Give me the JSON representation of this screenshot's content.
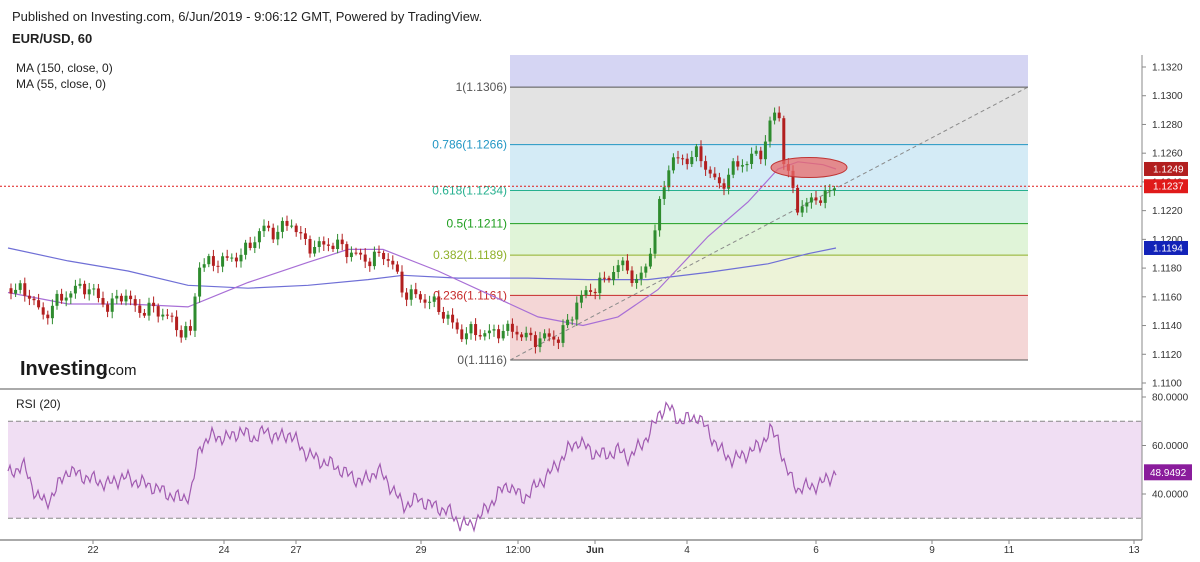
{
  "header": {
    "published": "Published on Investing.com, 6/Jun/2019 - 9:06:12 GMT, Powered by TradingView.",
    "symbol": "EUR/USD, 60"
  },
  "indicators": {
    "ma150": "MA (150, close, 0)",
    "ma55": "MA (55, close, 0)",
    "rsi": "RSI (20)"
  },
  "logo": {
    "name": "Investing",
    "domain": ".com"
  },
  "colors": {
    "bull": "#2e8b2e",
    "bear": "#b21f1f",
    "ma150": "#6f6fd6",
    "ma55": "#a86fd6",
    "rsi": "#a05ab0",
    "price_line": "#e01a1a",
    "ma55_badge": "#1222b8",
    "rsi_badge": "#8a1c9c",
    "fib_100": "#d5d5f3",
    "fib_786": "#e3e3e3",
    "fib_618": "#d4ebf6",
    "fib_50": "#d7f1e6",
    "fib_382": "#e0f4d8",
    "fib_236": "#edf3d8",
    "fib_0": "#f4d6d6"
  },
  "chart_data": [
    {
      "type": "candlestick",
      "title": "EUR/USD, 60",
      "x_labels": [
        "22",
        "24",
        "27",
        "29",
        "12:00",
        "Jun",
        "4",
        "6",
        "9",
        "11",
        "13"
      ],
      "y_ticks": [
        "1.1320",
        "1.1300",
        "1.1280",
        "1.1260",
        "1.1240",
        "1.1220",
        "1.1200",
        "1.1180",
        "1.1160",
        "1.1140",
        "1.1120",
        "1.1100"
      ],
      "ylim": [
        1.11,
        1.132
      ],
      "last_price": "1.1237",
      "price_badges": [
        "1.1249",
        "1.1237",
        "1.1194"
      ],
      "fibonacci": [
        {
          "label": "1(1.1306)",
          "level": 1.1306,
          "color": "#555555"
        },
        {
          "label": "0.786(1.1266)",
          "level": 1.1266,
          "color": "#2196c4"
        },
        {
          "label": "0.618(1.1234)",
          "level": 1.1234,
          "color": "#26b08f"
        },
        {
          "label": "0.5(1.1211)",
          "level": 1.1211,
          "color": "#1f9e1f"
        },
        {
          "label": "0.382(1.1189)",
          "level": 1.1189,
          "color": "#8fb02a"
        },
        {
          "label": "0.236(1.1161)",
          "level": 1.1161,
          "color": "#c72b2b"
        },
        {
          "label": "0(1.1116)",
          "level": 1.1116,
          "color": "#555555"
        }
      ],
      "close_path": [
        [
          0,
          1.1166
        ],
        [
          20,
          1.1163
        ],
        [
          35,
          1.1146
        ],
        [
          50,
          1.1158
        ],
        [
          60,
          1.1162
        ],
        [
          75,
          1.1168
        ],
        [
          90,
          1.116
        ],
        [
          100,
          1.1152
        ],
        [
          115,
          1.1163
        ],
        [
          130,
          1.115
        ],
        [
          145,
          1.1152
        ],
        [
          160,
          1.1146
        ],
        [
          172,
          1.1136
        ],
        [
          183,
          1.1135
        ],
        [
          190,
          1.1182
        ],
        [
          205,
          1.1184
        ],
        [
          220,
          1.1186
        ],
        [
          235,
          1.119
        ],
        [
          245,
          1.1199
        ],
        [
          255,
          1.1208
        ],
        [
          268,
          1.1204
        ],
        [
          282,
          1.1213
        ],
        [
          295,
          1.1199
        ],
        [
          305,
          1.1194
        ],
        [
          318,
          1.1197
        ],
        [
          330,
          1.1196
        ],
        [
          345,
          1.119
        ],
        [
          360,
          1.1185
        ],
        [
          375,
          1.119
        ],
        [
          385,
          1.1182
        ],
        [
          395,
          1.1163
        ],
        [
          410,
          1.116
        ],
        [
          425,
          1.1156
        ],
        [
          440,
          1.1145
        ],
        [
          452,
          1.1134
        ],
        [
          465,
          1.1136
        ],
        [
          478,
          1.1134
        ],
        [
          490,
          1.1136
        ],
        [
          505,
          1.1137
        ],
        [
          515,
          1.1133
        ],
        [
          525,
          1.113
        ],
        [
          540,
          1.1132
        ],
        [
          550,
          1.1131
        ],
        [
          560,
          1.1142
        ],
        [
          570,
          1.1158
        ],
        [
          585,
          1.1166
        ],
        [
          598,
          1.1172
        ],
        [
          610,
          1.1182
        ],
        [
          620,
          1.118
        ],
        [
          628,
          1.1168
        ],
        [
          640,
          1.1185
        ],
        [
          648,
          1.121
        ],
        [
          655,
          1.1235
        ],
        [
          662,
          1.1255
        ],
        [
          675,
          1.1255
        ],
        [
          690,
          1.126
        ],
        [
          700,
          1.1248
        ],
        [
          712,
          1.1236
        ],
        [
          725,
          1.125
        ],
        [
          740,
          1.1255
        ],
        [
          755,
          1.1262
        ],
        [
          762,
          1.128
        ],
        [
          770,
          1.1293
        ],
        [
          776,
          1.1255
        ],
        [
          782,
          1.124
        ],
        [
          790,
          1.1222
        ],
        [
          800,
          1.1225
        ],
        [
          812,
          1.123
        ],
        [
          820,
          1.123
        ],
        [
          828,
          1.124
        ]
      ],
      "ma150_path": [
        [
          0,
          1.1194
        ],
        [
          60,
          1.1185
        ],
        [
          120,
          1.1178
        ],
        [
          180,
          1.1168
        ],
        [
          240,
          1.1166
        ],
        [
          300,
          1.1168
        ],
        [
          360,
          1.1172
        ],
        [
          395,
          1.1175
        ],
        [
          450,
          1.1173
        ],
        [
          520,
          1.1173
        ],
        [
          580,
          1.1172
        ],
        [
          640,
          1.1172
        ],
        [
          700,
          1.1177
        ],
        [
          760,
          1.1183
        ],
        [
          800,
          1.119
        ],
        [
          828,
          1.1194
        ]
      ],
      "ma55_path": [
        [
          0,
          1.1163
        ],
        [
          60,
          1.1155
        ],
        [
          120,
          1.1155
        ],
        [
          180,
          1.1153
        ],
        [
          240,
          1.117
        ],
        [
          300,
          1.1184
        ],
        [
          340,
          1.1193
        ],
        [
          375,
          1.1193
        ],
        [
          430,
          1.1178
        ],
        [
          480,
          1.1162
        ],
        [
          530,
          1.1146
        ],
        [
          575,
          1.114
        ],
        [
          610,
          1.1146
        ],
        [
          650,
          1.1165
        ],
        [
          700,
          1.1202
        ],
        [
          740,
          1.1226
        ],
        [
          770,
          1.1249
        ],
        [
          790,
          1.1254
        ],
        [
          815,
          1.1252
        ],
        [
          828,
          1.1249
        ]
      ],
      "trendline": [
        [
          510,
          1.1116
        ],
        [
          1028,
          1.1306
        ]
      ],
      "highlight": {
        "x": 809,
        "y": 1.125
      }
    },
    {
      "type": "line",
      "title": "RSI (20)",
      "y_ticks": [
        "80.0000",
        "60.0000",
        "40.0000"
      ],
      "ylim": [
        20,
        82
      ],
      "bands": [
        70,
        30
      ],
      "last_value": "48.9492",
      "x_labels": [
        "22",
        "24",
        "27",
        "29",
        "12:00",
        "Jun",
        "4",
        "6",
        "9",
        "11",
        "13"
      ],
      "path": [
        [
          0,
          48
        ],
        [
          15,
          52
        ],
        [
          28,
          40
        ],
        [
          38,
          36
        ],
        [
          48,
          42
        ],
        [
          60,
          50
        ],
        [
          70,
          48
        ],
        [
          85,
          46
        ],
        [
          100,
          44
        ],
        [
          115,
          47
        ],
        [
          130,
          45
        ],
        [
          145,
          43
        ],
        [
          160,
          40
        ],
        [
          172,
          38
        ],
        [
          183,
          40
        ],
        [
          192,
          60
        ],
        [
          205,
          64
        ],
        [
          220,
          63
        ],
        [
          232,
          66
        ],
        [
          245,
          63
        ],
        [
          258,
          66
        ],
        [
          270,
          63
        ],
        [
          282,
          65
        ],
        [
          295,
          58
        ],
        [
          310,
          54
        ],
        [
          325,
          52
        ],
        [
          340,
          48
        ],
        [
          355,
          45
        ],
        [
          370,
          50
        ],
        [
          385,
          42
        ],
        [
          395,
          35
        ],
        [
          410,
          38
        ],
        [
          425,
          35
        ],
        [
          440,
          33
        ],
        [
          452,
          28
        ],
        [
          462,
          27
        ],
        [
          475,
          32
        ],
        [
          490,
          40
        ],
        [
          500,
          44
        ],
        [
          515,
          38
        ],
        [
          530,
          44
        ],
        [
          545,
          50
        ],
        [
          560,
          58
        ],
        [
          570,
          62
        ],
        [
          585,
          57
        ],
        [
          598,
          56
        ],
        [
          610,
          58
        ],
        [
          622,
          55
        ],
        [
          632,
          60
        ],
        [
          642,
          65
        ],
        [
          652,
          74
        ],
        [
          660,
          76
        ],
        [
          672,
          70
        ],
        [
          690,
          72
        ],
        [
          700,
          66
        ],
        [
          712,
          58
        ],
        [
          725,
          54
        ],
        [
          740,
          57
        ],
        [
          752,
          60
        ],
        [
          762,
          66
        ],
        [
          770,
          63
        ],
        [
          778,
          50
        ],
        [
          790,
          42
        ],
        [
          800,
          43
        ],
        [
          812,
          44
        ],
        [
          822,
          47
        ],
        [
          828,
          49
        ]
      ]
    }
  ]
}
